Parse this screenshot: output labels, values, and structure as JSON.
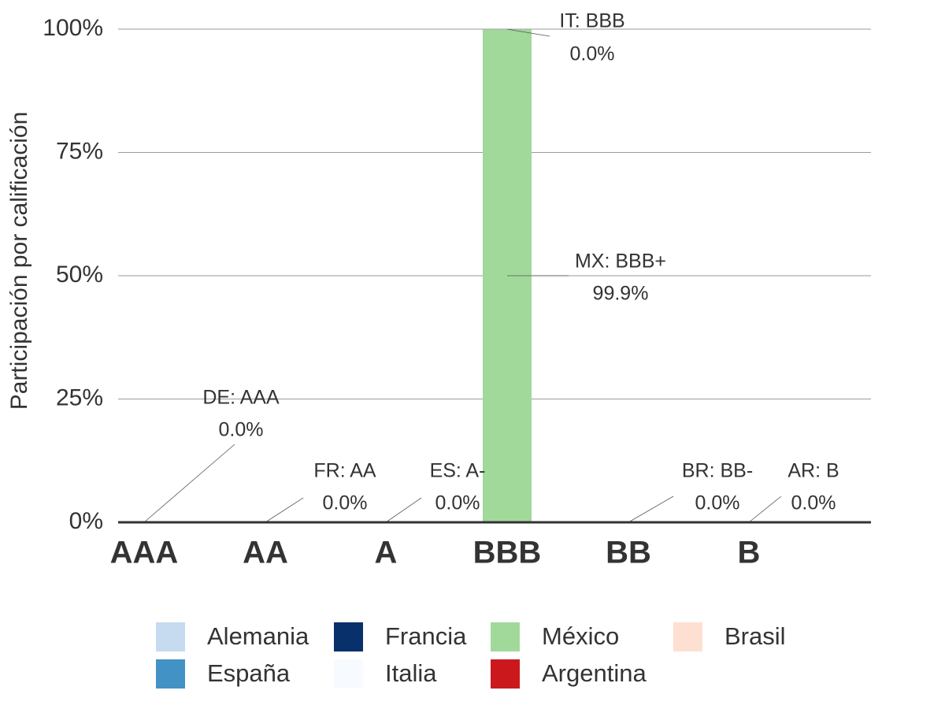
{
  "chart_data": {
    "type": "bar",
    "categories": [
      "AAA",
      "AA",
      "A",
      "BBB",
      "BB",
      "B"
    ],
    "ylabel": "Participación por calificación",
    "xlabel": "",
    "ylim": [
      0,
      100
    ],
    "yticks": [
      "0%",
      "25%",
      "50%",
      "75%",
      "100%"
    ],
    "ytick_values": [
      0,
      25,
      50,
      75,
      100
    ],
    "grid": true,
    "legend_position": "bottom",
    "series": [
      {
        "name": "Alemania",
        "color": "#c6dbef",
        "category": "AAA",
        "value": 0.0
      },
      {
        "name": "Francia",
        "color": "#08306b",
        "category": "AA",
        "value": 0.0
      },
      {
        "name": "España",
        "color": "#4292c6",
        "category": "A",
        "value": 0.0
      },
      {
        "name": "Italia",
        "color": "#f7fbff",
        "category": "BBB",
        "value": 0.0
      },
      {
        "name": "México",
        "color": "#a1d99b",
        "category": "BBB",
        "value": 99.9
      },
      {
        "name": "Brasil",
        "color": "#fee0d2",
        "category": "BB",
        "value": 0.0
      },
      {
        "name": "Argentina",
        "color": "#cb181d",
        "category": "B",
        "value": 0.0
      }
    ],
    "annotations": [
      {
        "line1": "DE: AAA",
        "line2": "0.0%"
      },
      {
        "line1": "FR: AA",
        "line2": "0.0%"
      },
      {
        "line1": "ES: A-",
        "line2": "0.0%"
      },
      {
        "line1": "IT: BBB",
        "line2": "0.0%"
      },
      {
        "line1": "MX: BBB+",
        "line2": "99.9%"
      },
      {
        "line1": "BR: BB-",
        "line2": "0.0%"
      },
      {
        "line1": "AR: B",
        "line2": "0.0%"
      }
    ]
  },
  "legend": [
    {
      "label": "Alemania",
      "color": "#c6dbef"
    },
    {
      "label": "Francia",
      "color": "#08306b"
    },
    {
      "label": "México",
      "color": "#a1d99b"
    },
    {
      "label": "Brasil",
      "color": "#fee0d2"
    },
    {
      "label": "España",
      "color": "#4292c6"
    },
    {
      "label": "Italia",
      "color": "#f7fbff"
    },
    {
      "label": "Argentina",
      "color": "#cb181d"
    }
  ]
}
